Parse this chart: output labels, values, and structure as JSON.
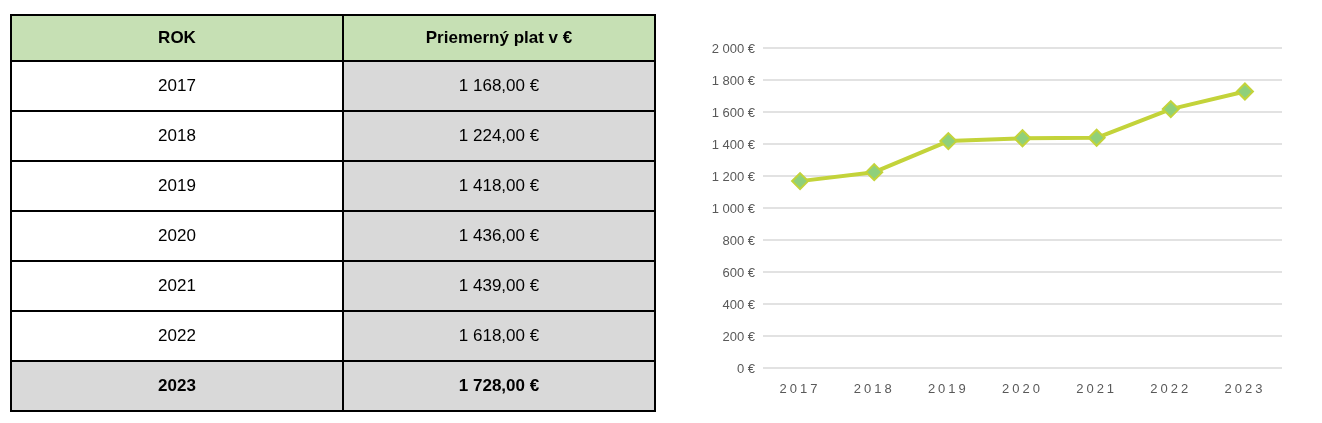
{
  "chart_data": {
    "type": "line",
    "annotations": [
      "ROK",
      "Priemerný plat v €",
      "1 168,00 €",
      "1 224,00 €",
      "1 418,00 €",
      "1 436,00 €",
      "1 439,00 €",
      "1 618,00 €",
      "1 728,00 €"
    ],
    "categories": [
      "2017",
      "2018",
      "2019",
      "2020",
      "2021",
      "2022",
      "2023"
    ],
    "series": [
      {
        "color": "#c3d33a",
        "values": [
          1168,
          1224,
          1418,
          1436,
          1439,
          1618,
          1728
        ]
      }
    ],
    "ylim": [
      0,
      2000
    ],
    "yticks": [
      {
        "value": 0,
        "label": "0 €"
      },
      {
        "value": 200,
        "label": "200 €"
      },
      {
        "value": 400,
        "label": "400 €"
      },
      {
        "value": 600,
        "label": "600 €"
      },
      {
        "value": 800,
        "label": "800 €"
      },
      {
        "value": 1000,
        "label": "1 000 €"
      },
      {
        "value": 1200,
        "label": "1 200 €"
      },
      {
        "value": 1400,
        "label": "1 400 €"
      },
      {
        "value": 1600,
        "label": "1 600 €"
      },
      {
        "value": 1800,
        "label": "1 800 €"
      },
      {
        "value": 2000,
        "label": "2 000 €"
      }
    ],
    "grid": "y",
    "marker": "diamond",
    "line_style": "solid",
    "legend": false
  }
}
